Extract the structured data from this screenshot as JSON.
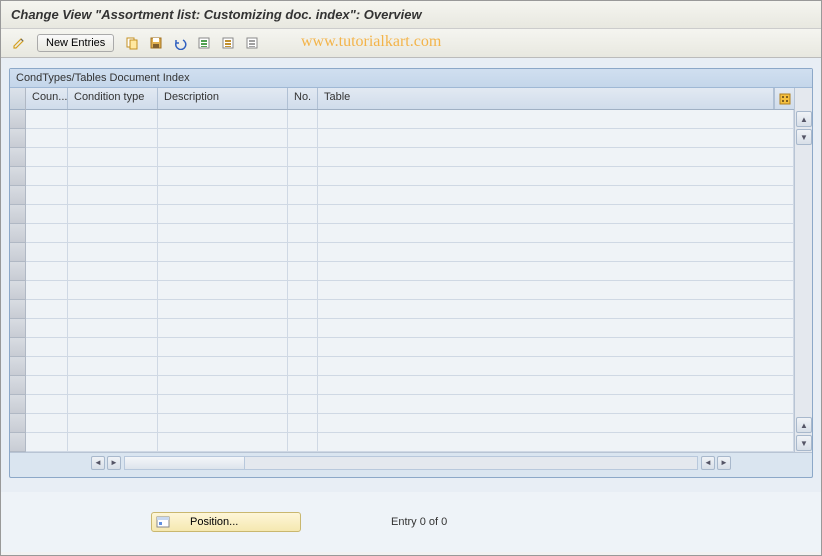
{
  "title": "Change View \"Assortment list: Customizing doc. index\": Overview",
  "toolbar": {
    "new_entries_label": "New Entries"
  },
  "watermark": "www.tutorialkart.com",
  "panel": {
    "title": "CondTypes/Tables Document Index",
    "columns": {
      "coun": "Coun...",
      "condition_type": "Condition type",
      "description": "Description",
      "no": "No.",
      "table": "Table"
    },
    "row_count": 18
  },
  "position_button": {
    "label": "Position..."
  },
  "status": {
    "entry_text": "Entry 0 of 0"
  },
  "colors": {
    "panel_bg": "#dae5f0",
    "header_grad_top": "#e2e9f2",
    "header_grad_bot": "#d0dceb",
    "watermark": "#f5a623",
    "position_bg_top": "#fef6d8",
    "position_bg_bot": "#f5e8b0"
  }
}
